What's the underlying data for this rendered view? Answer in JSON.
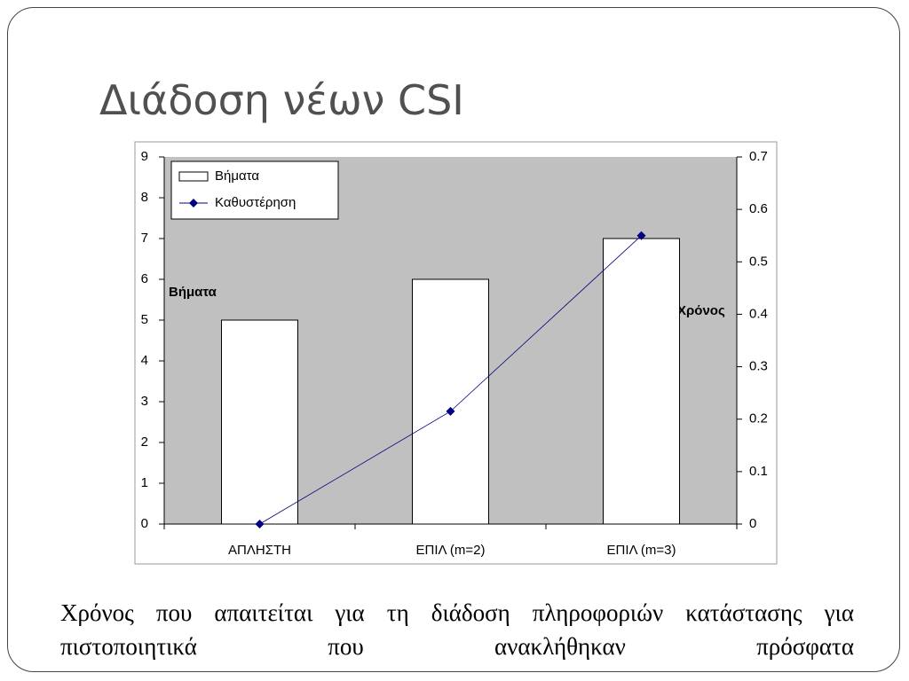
{
  "slide": {
    "title": "Διάδοση νέων CSI",
    "caption": "Χρόνος που απαιτείται για τη διάδοση πληροφοριών κατάστασης για πιστοποιητικά που ανακλήθηκαν πρόσφατα"
  },
  "chart_data": {
    "type": "combo",
    "y_label": "Βήματα",
    "y2_label": "Χρόνος",
    "categories": [
      "ΑΠΛΗΣΤΗ",
      "ΕΠΙΛ (m=2)",
      "ΕΠΙΛ (m=3)"
    ],
    "series": [
      {
        "name": "Βήματα",
        "type": "bar",
        "color": "#ffffff",
        "values": [
          5,
          6,
          7
        ]
      },
      {
        "name": "Καθυστέρηση",
        "type": "line",
        "axis": "y2",
        "color": "#000080",
        "values": [
          0,
          0.215,
          0.55
        ]
      }
    ],
    "ylim": [
      0,
      9
    ],
    "yticks": [
      0,
      1,
      2,
      3,
      4,
      5,
      6,
      7,
      8,
      9
    ],
    "y2lim": [
      0,
      0.7
    ],
    "y2ticks": [
      0,
      0.1,
      0.2,
      0.3,
      0.4,
      0.5,
      0.6,
      0.7
    ],
    "plot_background": "#c0c0c0",
    "legend": "top-left"
  }
}
